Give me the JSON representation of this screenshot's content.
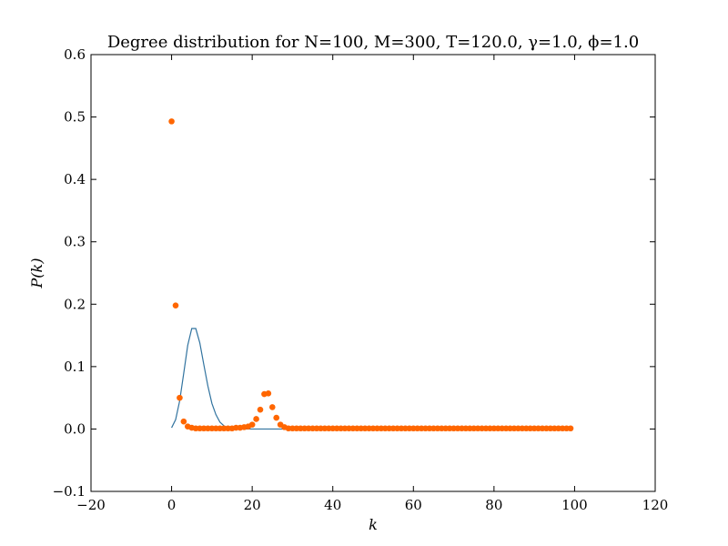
{
  "chart_data": {
    "type": "scatter",
    "title": "Degree distribution for N=100, M=300, T=120.0, γ=1.0, ϕ=1.0",
    "xlabel": "k",
    "ylabel": "P(k)",
    "xlim": [
      -20,
      120
    ],
    "ylim": [
      -0.1,
      0.6
    ],
    "xticks": [
      -20,
      0,
      20,
      40,
      60,
      80,
      100,
      120
    ],
    "yticks": [
      -0.1,
      0.0,
      0.1,
      0.2,
      0.3,
      0.4,
      0.5,
      0.6
    ],
    "xtick_labels": [
      "−20",
      "0",
      "20",
      "40",
      "60",
      "80",
      "100",
      "120"
    ],
    "ytick_labels": [
      "−0.1",
      "0.0",
      "0.1",
      "0.2",
      "0.3",
      "0.4",
      "0.5",
      "0.6"
    ],
    "grid": false,
    "legend": "none",
    "series": [
      {
        "kind": "scatter",
        "color": "#ff6600",
        "x": [
          0,
          1,
          2,
          3,
          4,
          5,
          6,
          7,
          8,
          9,
          10,
          11,
          12,
          13,
          14,
          15,
          16,
          17,
          18,
          19,
          20,
          21,
          22,
          23,
          24,
          25,
          26,
          27,
          28,
          29,
          30,
          31,
          32,
          33,
          34,
          35,
          36,
          37,
          38,
          39,
          40,
          41,
          42,
          43,
          44,
          45,
          46,
          47,
          48,
          49,
          50,
          51,
          52,
          53,
          54,
          55,
          56,
          57,
          58,
          59,
          60,
          61,
          62,
          63,
          64,
          65,
          66,
          67,
          68,
          69,
          70,
          71,
          72,
          73,
          74,
          75,
          76,
          77,
          78,
          79,
          80,
          81,
          82,
          83,
          84,
          85,
          86,
          87,
          88,
          89,
          90,
          91,
          92,
          93,
          94,
          95,
          96,
          97,
          98,
          99
        ],
        "y": [
          0.493,
          0.198,
          0.05,
          0.012,
          0.004,
          0.002,
          0.001,
          0.001,
          0.001,
          0.001,
          0.001,
          0.001,
          0.001,
          0.001,
          0.001,
          0.001,
          0.002,
          0.002,
          0.003,
          0.004,
          0.007,
          0.016,
          0.031,
          0.056,
          0.057,
          0.035,
          0.018,
          0.007,
          0.003,
          0.001,
          0.001,
          0.001,
          0.001,
          0.001,
          0.001,
          0.001,
          0.001,
          0.001,
          0.001,
          0.001,
          0.001,
          0.001,
          0.001,
          0.001,
          0.001,
          0.001,
          0.001,
          0.001,
          0.001,
          0.001,
          0.001,
          0.001,
          0.001,
          0.001,
          0.001,
          0.001,
          0.001,
          0.001,
          0.001,
          0.001,
          0.001,
          0.001,
          0.001,
          0.001,
          0.001,
          0.001,
          0.001,
          0.001,
          0.001,
          0.001,
          0.001,
          0.001,
          0.001,
          0.001,
          0.001,
          0.001,
          0.001,
          0.001,
          0.001,
          0.001,
          0.001,
          0.001,
          0.001,
          0.001,
          0.001,
          0.001,
          0.001,
          0.001,
          0.001,
          0.001,
          0.001,
          0.001,
          0.001,
          0.001,
          0.001,
          0.001,
          0.001,
          0.001,
          0.001,
          0.001
        ]
      },
      {
        "kind": "line",
        "color": "#31739f",
        "x": [
          0,
          1,
          2,
          3,
          4,
          5,
          6,
          7,
          8,
          9,
          10,
          11,
          12,
          13,
          14,
          15,
          16,
          17,
          18,
          19,
          20,
          21,
          22,
          23,
          24,
          25,
          26,
          27,
          28,
          29,
          30
        ],
        "y": [
          0.002,
          0.015,
          0.045,
          0.089,
          0.134,
          0.161,
          0.161,
          0.138,
          0.103,
          0.069,
          0.041,
          0.023,
          0.011,
          0.005,
          0.002,
          0.001,
          0.0,
          0.0,
          0.0,
          0.0,
          0.0,
          0.0,
          0.0,
          0.0,
          0.0,
          0.0,
          0.0,
          0.0,
          0.0,
          0.0,
          0.0
        ]
      }
    ]
  }
}
